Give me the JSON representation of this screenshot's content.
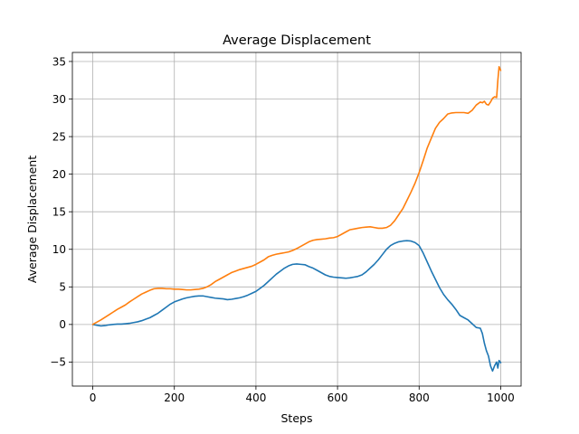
{
  "chart_data": {
    "type": "line",
    "title": "Average Displacement",
    "xlabel": "Steps",
    "ylabel": "Average Displacement",
    "xlim": [
      -50,
      1050
    ],
    "ylim": [
      -8.2,
      36.2
    ],
    "xticks": [
      0,
      200,
      400,
      600,
      800,
      1000
    ],
    "yticks": [
      -5,
      0,
      5,
      10,
      15,
      20,
      25,
      30,
      35
    ],
    "grid": true,
    "legend": "none",
    "series": [
      {
        "color": "#1f77b4",
        "x": [
          0,
          10,
          20,
          30,
          40,
          50,
          60,
          70,
          80,
          90,
          100,
          110,
          120,
          130,
          140,
          150,
          160,
          170,
          180,
          190,
          200,
          210,
          220,
          230,
          240,
          250,
          260,
          270,
          280,
          290,
          300,
          310,
          320,
          330,
          340,
          350,
          360,
          370,
          380,
          390,
          400,
          410,
          420,
          430,
          440,
          450,
          460,
          470,
          480,
          490,
          500,
          510,
          520,
          530,
          540,
          550,
          560,
          570,
          580,
          590,
          600,
          610,
          620,
          630,
          640,
          650,
          660,
          670,
          680,
          690,
          700,
          710,
          720,
          730,
          740,
          750,
          760,
          770,
          780,
          790,
          800,
          810,
          820,
          830,
          840,
          850,
          860,
          870,
          880,
          890,
          900,
          910,
          920,
          930,
          940,
          950,
          955,
          960,
          965,
          970,
          975,
          980,
          985,
          990,
          993,
          996,
          1000
        ],
        "y": [
          0,
          -0.1,
          -0.2,
          -0.15,
          -0.05,
          0,
          0.05,
          0.05,
          0.1,
          0.15,
          0.25,
          0.35,
          0.5,
          0.7,
          0.9,
          1.2,
          1.5,
          1.9,
          2.3,
          2.7,
          3.0,
          3.2,
          3.4,
          3.55,
          3.65,
          3.75,
          3.8,
          3.8,
          3.7,
          3.6,
          3.5,
          3.45,
          3.4,
          3.3,
          3.35,
          3.45,
          3.55,
          3.7,
          3.9,
          4.15,
          4.4,
          4.8,
          5.2,
          5.7,
          6.2,
          6.7,
          7.1,
          7.5,
          7.8,
          8.0,
          8.05,
          8.0,
          7.95,
          7.7,
          7.5,
          7.2,
          6.9,
          6.6,
          6.4,
          6.3,
          6.25,
          6.2,
          6.15,
          6.2,
          6.3,
          6.4,
          6.6,
          7.0,
          7.5,
          8.0,
          8.6,
          9.3,
          10.0,
          10.5,
          10.8,
          11.0,
          11.1,
          11.15,
          11.1,
          10.9,
          10.5,
          9.5,
          8.3,
          7.1,
          6.0,
          4.9,
          4.0,
          3.3,
          2.7,
          2.0,
          1.2,
          0.9,
          0.6,
          0.1,
          -0.4,
          -0.5,
          -1.2,
          -2.5,
          -3.5,
          -4.2,
          -5.5,
          -6.2,
          -5.5,
          -5.0,
          -5.8,
          -4.8,
          -5.1
        ]
      },
      {
        "color": "#ff7f0e",
        "x": [
          0,
          10,
          20,
          30,
          40,
          50,
          60,
          70,
          80,
          90,
          100,
          110,
          120,
          130,
          140,
          150,
          160,
          170,
          180,
          190,
          200,
          210,
          220,
          230,
          240,
          250,
          260,
          270,
          280,
          290,
          300,
          310,
          320,
          330,
          340,
          350,
          360,
          370,
          380,
          390,
          400,
          410,
          420,
          430,
          440,
          450,
          460,
          470,
          480,
          490,
          500,
          510,
          520,
          530,
          540,
          550,
          560,
          570,
          580,
          590,
          600,
          610,
          620,
          630,
          640,
          650,
          660,
          670,
          680,
          690,
          700,
          710,
          720,
          730,
          740,
          750,
          760,
          770,
          780,
          790,
          800,
          810,
          820,
          830,
          840,
          850,
          860,
          870,
          880,
          890,
          900,
          910,
          920,
          930,
          940,
          950,
          955,
          960,
          965,
          970,
          975,
          980,
          985,
          990,
          993,
          996,
          1000
        ],
        "y": [
          0,
          0.3,
          0.6,
          0.95,
          1.3,
          1.65,
          2.0,
          2.3,
          2.6,
          3.0,
          3.35,
          3.7,
          4.05,
          4.3,
          4.55,
          4.75,
          4.8,
          4.8,
          4.75,
          4.75,
          4.7,
          4.7,
          4.65,
          4.6,
          4.6,
          4.65,
          4.7,
          4.8,
          5.0,
          5.3,
          5.7,
          6.0,
          6.3,
          6.6,
          6.9,
          7.1,
          7.3,
          7.45,
          7.6,
          7.75,
          8.0,
          8.3,
          8.6,
          9.0,
          9.2,
          9.35,
          9.45,
          9.55,
          9.65,
          9.85,
          10.1,
          10.4,
          10.7,
          11.0,
          11.2,
          11.3,
          11.35,
          11.4,
          11.5,
          11.55,
          11.7,
          12.0,
          12.3,
          12.6,
          12.7,
          12.8,
          12.9,
          12.95,
          13.0,
          12.9,
          12.8,
          12.8,
          12.9,
          13.2,
          13.8,
          14.6,
          15.4,
          16.5,
          17.6,
          18.8,
          20.2,
          21.8,
          23.5,
          24.8,
          26.1,
          26.9,
          27.4,
          28.0,
          28.15,
          28.2,
          28.2,
          28.2,
          28.1,
          28.5,
          29.2,
          29.6,
          29.5,
          29.7,
          29.3,
          29.2,
          29.6,
          30.1,
          30.3,
          30.2,
          32.5,
          34.3,
          33.8
        ]
      }
    ]
  }
}
